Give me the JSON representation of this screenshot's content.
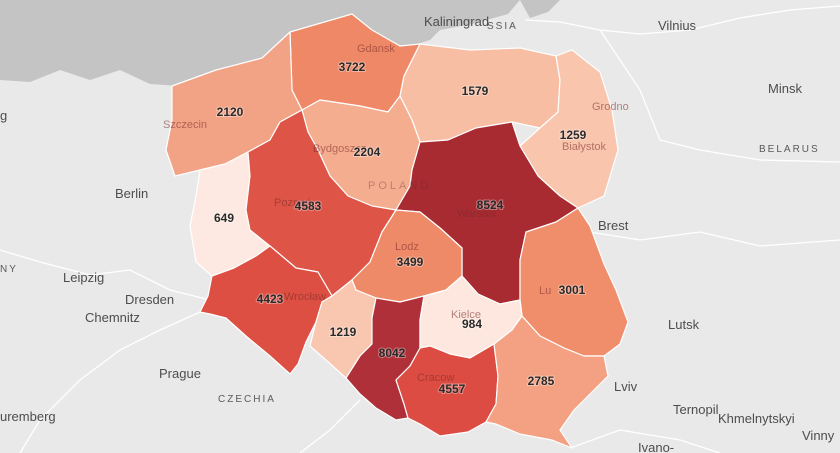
{
  "colors": {
    "sea": "#c4c4c4",
    "land": "#e9e9e9",
    "scale": [
      "#fde9e1",
      "#f7b59a",
      "#ef8a68",
      "#d9473c",
      "#a82b32"
    ]
  },
  "places": {
    "kaliningrad": "Kaliningrad",
    "russia_fragment": "SSIA",
    "vilnius": "Vilnius",
    "minsk": "Minsk",
    "belarus": "BELARUS",
    "berlin": "Berlin",
    "germany_fragment": "NY",
    "leipzig": "Leipzig",
    "dresden": "Dresden",
    "chemnitz": "Chemnitz",
    "prague": "Prague",
    "czechia": "CZECHIA",
    "nuremberg_fragment": "uremberg",
    "brest": "Brest",
    "lutsk": "Lutsk",
    "lviv": "Lviv",
    "ternopil": "Ternopil",
    "khmelnytskyi": "Khmelnytskyi",
    "vinny_fragment": "Vinny",
    "ivano_fragment": "Ivano-",
    "left_fragment": "g"
  },
  "ghost_labels": {
    "gdansk": "Gdansk",
    "szczecin": "Szczecin",
    "bydgoszcz": "Bydgoszcz",
    "grodno": "Grodno",
    "bialystok": "Białystok",
    "poland": "POLAND",
    "poznan": "Poznań",
    "warsaw": "Warsaw",
    "lodz": "Lodz",
    "lublin": "Lu",
    "wroclaw": "Wrocław",
    "kielce": "Kielce",
    "krakow": "Cracow"
  },
  "regions": [
    {
      "id": "pomorskie",
      "value": 3722,
      "color": "#ee8867"
    },
    {
      "id": "zachodniopomorskie",
      "value": 2120,
      "color": "#f3a385"
    },
    {
      "id": "warminsko-mazurskie",
      "value": 1579,
      "color": "#f8bea4"
    },
    {
      "id": "podlaskie",
      "value": 1259,
      "color": "#f9c5ad"
    },
    {
      "id": "kujawsko-pomorskie",
      "value": 2204,
      "color": "#f5ad8f"
    },
    {
      "id": "lubuskie",
      "value": 649,
      "color": "#fde9e1"
    },
    {
      "id": "wielkopolskie",
      "value": 4583,
      "color": "#de5446"
    },
    {
      "id": "mazowieckie",
      "value": 8524,
      "color": "#a82b32"
    },
    {
      "id": "lodzkie",
      "value": 3499,
      "color": "#ef8a68"
    },
    {
      "id": "lubelskie",
      "value": 3001,
      "color": "#f08e6c"
    },
    {
      "id": "dolnoslaskie",
      "value": 4423,
      "color": "#dd4f42"
    },
    {
      "id": "opolskie",
      "value": 1219,
      "color": "#f9c7b0"
    },
    {
      "id": "slaskie",
      "value": 8042,
      "color": "#b0303a"
    },
    {
      "id": "swietokrzyskie",
      "value": 984,
      "color": "#fde7de"
    },
    {
      "id": "malopolskie",
      "value": 4557,
      "color": "#dc4c42"
    },
    {
      "id": "podkarpackie",
      "value": 2785,
      "color": "#f3a182"
    }
  ]
}
